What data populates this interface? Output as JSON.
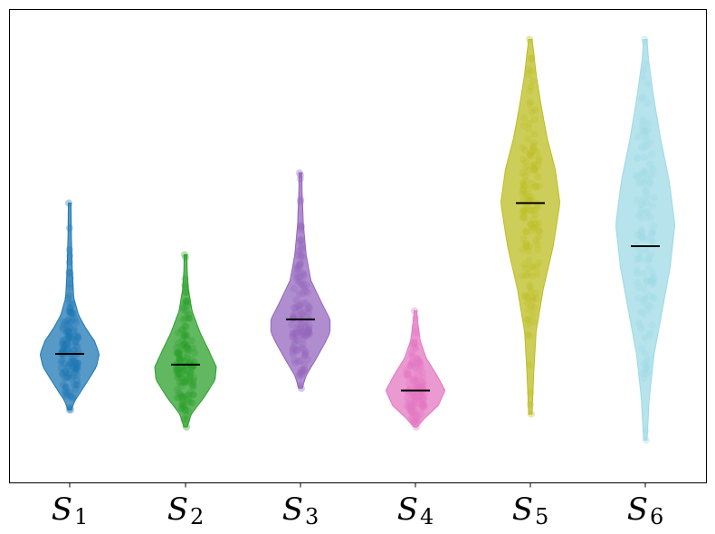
{
  "chart_data": {
    "type": "violin",
    "title": "",
    "xlabel": "",
    "ylabel": "",
    "y_ticks_visible": false,
    "grid": false,
    "legend": "none",
    "ylim": [
      0,
      10
    ],
    "categories": [
      {
        "base": "S",
        "sub": "1"
      },
      {
        "base": "S",
        "sub": "2"
      },
      {
        "base": "S",
        "sub": "3"
      },
      {
        "base": "S",
        "sub": "4"
      },
      {
        "base": "S",
        "sub": "5"
      },
      {
        "base": "S",
        "sub": "6"
      }
    ],
    "series": [
      {
        "color": "#1f77b4",
        "min": 1.2,
        "max": 6.0,
        "median": 2.5,
        "profile": [
          [
            1.2,
            0.02
          ],
          [
            1.4,
            0.1
          ],
          [
            1.8,
            0.38
          ],
          [
            2.2,
            0.65
          ],
          [
            2.5,
            0.72
          ],
          [
            2.8,
            0.6
          ],
          [
            3.1,
            0.38
          ],
          [
            3.4,
            0.2
          ],
          [
            3.8,
            0.08
          ],
          [
            4.5,
            0.04
          ],
          [
            5.2,
            0.02
          ],
          [
            6.0,
            0.01
          ]
        ]
      },
      {
        "color": "#2ca02c",
        "min": 0.8,
        "max": 4.8,
        "median": 2.25,
        "profile": [
          [
            0.8,
            0.02
          ],
          [
            1.1,
            0.12
          ],
          [
            1.5,
            0.45
          ],
          [
            1.9,
            0.72
          ],
          [
            2.2,
            0.75
          ],
          [
            2.6,
            0.55
          ],
          [
            3.0,
            0.34
          ],
          [
            3.5,
            0.14
          ],
          [
            4.0,
            0.05
          ],
          [
            4.4,
            0.02
          ],
          [
            4.8,
            0.01
          ]
        ]
      },
      {
        "color": "#9467bd",
        "min": 1.7,
        "max": 6.7,
        "median": 3.3,
        "profile": [
          [
            1.7,
            0.02
          ],
          [
            2.0,
            0.12
          ],
          [
            2.4,
            0.38
          ],
          [
            2.8,
            0.62
          ],
          [
            3.0,
            0.72
          ],
          [
            3.3,
            0.72
          ],
          [
            3.7,
            0.5
          ],
          [
            4.2,
            0.24
          ],
          [
            4.8,
            0.12
          ],
          [
            5.5,
            0.05
          ],
          [
            6.2,
            0.02
          ],
          [
            6.7,
            0.01
          ]
        ]
      },
      {
        "color": "#e377c2",
        "min": 0.8,
        "max": 3.5,
        "median": 1.65,
        "profile": [
          [
            0.8,
            0.02
          ],
          [
            1.0,
            0.2
          ],
          [
            1.3,
            0.55
          ],
          [
            1.65,
            0.72
          ],
          [
            2.0,
            0.52
          ],
          [
            2.4,
            0.25
          ],
          [
            2.8,
            0.1
          ],
          [
            3.2,
            0.04
          ],
          [
            3.5,
            0.01
          ]
        ]
      },
      {
        "color": "#bcbd22",
        "min": 1.1,
        "max": 9.8,
        "median": 6.0,
        "profile": [
          [
            1.1,
            0.02
          ],
          [
            2.0,
            0.06
          ],
          [
            3.0,
            0.12
          ],
          [
            4.0,
            0.3
          ],
          [
            5.0,
            0.55
          ],
          [
            6.0,
            0.72
          ],
          [
            6.8,
            0.6
          ],
          [
            7.5,
            0.4
          ],
          [
            8.3,
            0.24
          ],
          [
            9.0,
            0.12
          ],
          [
            9.5,
            0.06
          ],
          [
            9.8,
            0.02
          ]
        ]
      },
      {
        "color": "#9edae5",
        "min": 0.5,
        "max": 9.8,
        "median": 5.0,
        "profile": [
          [
            0.5,
            0.02
          ],
          [
            1.5,
            0.08
          ],
          [
            2.5,
            0.2
          ],
          [
            3.5,
            0.4
          ],
          [
            4.5,
            0.6
          ],
          [
            5.5,
            0.72
          ],
          [
            6.5,
            0.58
          ],
          [
            7.5,
            0.36
          ],
          [
            8.5,
            0.18
          ],
          [
            9.3,
            0.06
          ],
          [
            9.8,
            0.02
          ]
        ]
      }
    ]
  }
}
